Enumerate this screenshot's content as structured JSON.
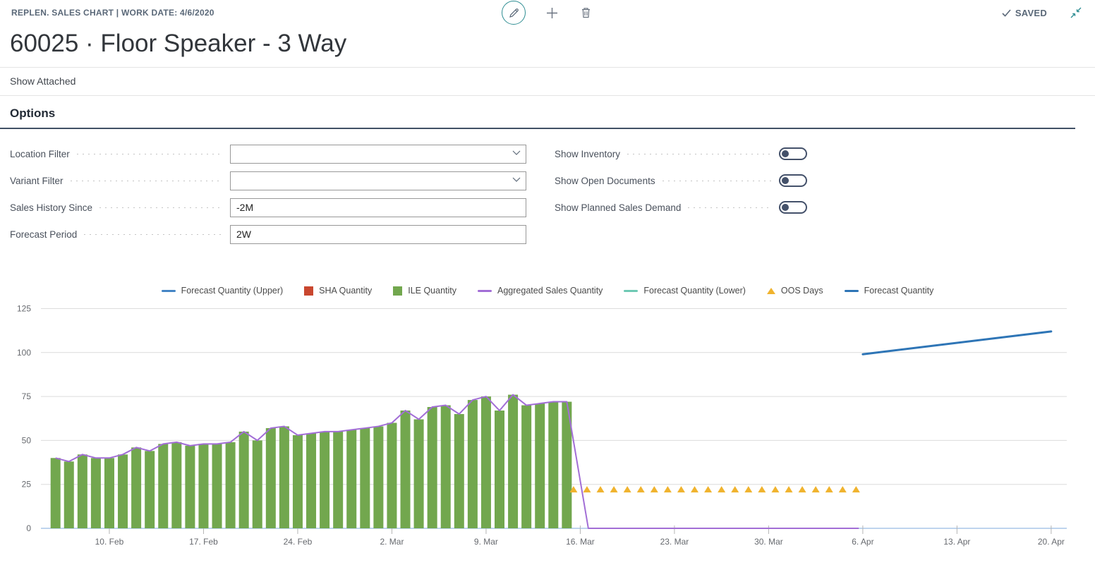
{
  "page": {
    "caption": "REPLEN. SALES CHART | WORK DATE: 4/6/2020",
    "title": "60025 · Floor Speaker - 3 Way",
    "saved_label": "SAVED",
    "show_attached_label": "Show Attached",
    "options_label": "Options"
  },
  "colors": {
    "accent_teal": "#2f8e93",
    "header_gray_blue": "#5a6878",
    "options_underline": "#415065",
    "toggle": "#44516a",
    "gridline": "#dcdcdc",
    "baseline": "#a8c6e8",
    "axis_text": "#66696e"
  },
  "options": {
    "location_filter": {
      "label": "Location Filter",
      "value": "",
      "control": "dropdown"
    },
    "variant_filter": {
      "label": "Variant Filter",
      "value": "",
      "control": "dropdown"
    },
    "sales_history_since": {
      "label": "Sales History Since",
      "value": "-2M",
      "control": "text"
    },
    "forecast_period": {
      "label": "Forecast Period",
      "value": "2W",
      "control": "text"
    },
    "show_inventory": {
      "label": "Show Inventory",
      "state": "off"
    },
    "show_open_documents": {
      "label": "Show Open Documents",
      "state": "off"
    },
    "show_planned_sales_demand": {
      "label": "Show Planned Sales Demand",
      "state": "off"
    }
  },
  "chart_data": {
    "type": "bar+line combo",
    "title": "",
    "grid": true,
    "legend_position": "top-center",
    "y_axis": {
      "ticks": [
        0,
        25,
        50,
        75,
        100,
        125
      ],
      "range": [
        0,
        130
      ]
    },
    "x_axis": {
      "day0_equals": "6. Feb 2020",
      "tick_labels": [
        "10. Feb",
        "17. Feb",
        "24. Feb",
        "2. Mar",
        "9. Mar",
        "16. Mar",
        "23. Mar",
        "30. Mar",
        "6. Apr",
        "13. Apr",
        "20. Apr"
      ],
      "tick_day_index": [
        4,
        11,
        18,
        25,
        32,
        39,
        46,
        53,
        60,
        67,
        74
      ]
    },
    "legend": [
      {
        "label": "Forecast Quantity (Upper)",
        "marker": "line",
        "color": "#4485c5"
      },
      {
        "label": "SHA Quantity",
        "marker": "square",
        "color": "#c9472f"
      },
      {
        "label": "ILE Quantity",
        "marker": "square",
        "color": "#72a74e"
      },
      {
        "label": "Aggregated Sales Quantity",
        "marker": "line",
        "color": "#a26ed6"
      },
      {
        "label": "Forecast Quantity (Lower)",
        "marker": "line",
        "color": "#6ec9b4"
      },
      {
        "label": "OOS Days",
        "marker": "triangle",
        "color": "#f0b32e"
      },
      {
        "label": "Forecast Quantity",
        "marker": "line",
        "color": "#2e75b6"
      }
    ],
    "ile_quantity_bars": {
      "start_day_index": 0,
      "start_date": "6. Feb",
      "end_date": "15. Mar",
      "values": [
        40,
        38,
        42,
        40,
        40,
        42,
        46,
        44,
        48,
        49,
        47,
        48,
        48,
        49,
        55,
        50,
        57,
        58,
        53,
        54,
        55,
        55,
        56,
        57,
        58,
        60,
        67,
        62,
        69,
        70,
        65,
        73,
        75,
        67,
        76,
        70,
        71,
        72,
        72
      ]
    },
    "aggregated_sales_line": {
      "follows_bar_values": true,
      "drop_to_zero_day_index": 39.6,
      "zero_until_day_index": 59.7
    },
    "oos_days_markers": {
      "y_value": 22,
      "start_day_index": 38.5,
      "count": 22,
      "from_date": "15. Mar",
      "to_date": "5. Apr"
    },
    "forecast_quantity_line": {
      "points": [
        {
          "day_index": 60,
          "date": "6. Apr",
          "value": 99
        },
        {
          "day_index": 74,
          "date": "20. Apr",
          "value": 112
        }
      ]
    },
    "sha_quantity": {
      "values_visible": false
    },
    "forecast_upper": {
      "values_visible": false
    },
    "forecast_lower": {
      "values_visible": false
    }
  }
}
